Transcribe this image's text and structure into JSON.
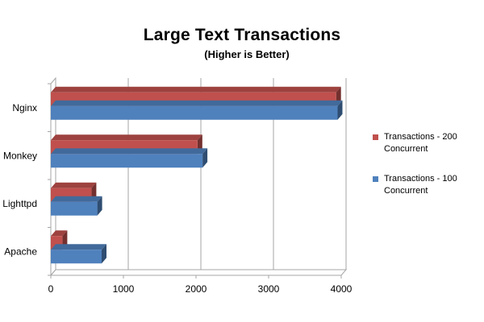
{
  "chart_data": {
    "type": "bar",
    "orientation": "horizontal",
    "title": "Large Text Transactions",
    "subtitle": "(Higher is Better)",
    "categories": [
      "Nginx",
      "Monkey",
      "Lighttpd",
      "Apache"
    ],
    "series": [
      {
        "name": "Transactions - 200 Concurrent",
        "color": "#c0504d",
        "values": [
          3930,
          2020,
          560,
          160
        ]
      },
      {
        "name": "Transactions - 100 Concurrent",
        "color": "#4f81bd",
        "values": [
          3950,
          2090,
          640,
          700
        ]
      }
    ],
    "xlim": [
      0,
      4000
    ],
    "xticks": [
      "0",
      "1000",
      "2000",
      "3000",
      "4000"
    ],
    "grid": true,
    "legend_position": "right",
    "style": "3d"
  }
}
